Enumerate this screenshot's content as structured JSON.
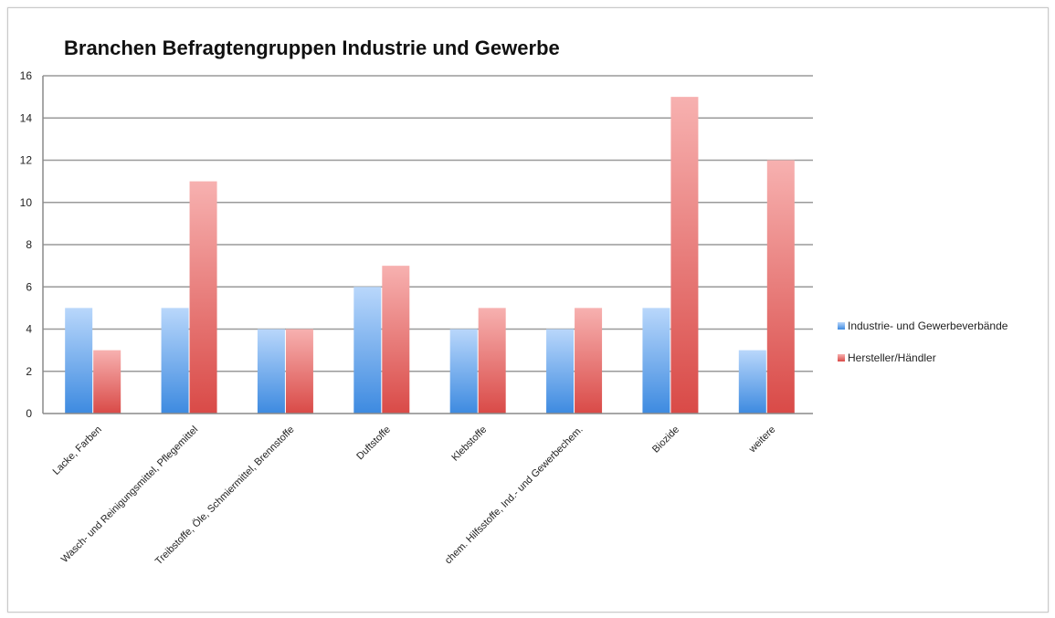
{
  "chart_data": {
    "type": "bar",
    "title": "Branchen Befragtengruppen Industrie und Gewerbe",
    "xlabel": "",
    "ylabel": "",
    "ylim": [
      0,
      16
    ],
    "yticks": [
      0,
      2,
      4,
      6,
      8,
      10,
      12,
      14,
      16
    ],
    "grid": true,
    "legend_position": "right",
    "categories": [
      "Lacke, Farben",
      "Wasch- und Reinigungsmittel, Pflegemittel",
      "Treibstoffe, Öle, Schmiermittel, Brennstoffe",
      "Duftstoffe",
      "Klebstoffe",
      "chem. Hilfsstoffe, Ind.- und Gewerbechem.",
      "Biozide",
      "weitere"
    ],
    "series": [
      {
        "name": "Industrie- und Gewerbeverbände",
        "color": "#6fa8e8",
        "values": [
          5,
          5,
          4,
          6,
          4,
          4,
          5,
          3
        ]
      },
      {
        "name": "Hersteller/Händler",
        "color": "#e06666",
        "values": [
          3,
          11,
          4,
          7,
          5,
          5,
          15,
          12
        ]
      }
    ]
  }
}
